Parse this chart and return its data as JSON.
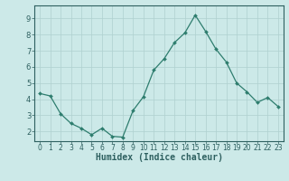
{
  "x": [
    0,
    1,
    2,
    3,
    4,
    5,
    6,
    7,
    8,
    9,
    10,
    11,
    12,
    13,
    14,
    15,
    16,
    17,
    18,
    19,
    20,
    21,
    22,
    23
  ],
  "y": [
    4.35,
    4.2,
    3.1,
    2.5,
    2.2,
    1.8,
    2.2,
    1.7,
    1.65,
    3.3,
    4.15,
    5.8,
    6.5,
    7.5,
    8.1,
    9.2,
    8.2,
    7.1,
    6.3,
    5.0,
    4.45,
    3.8,
    4.1,
    3.55
  ],
  "line_color": "#2e7d6e",
  "marker": "D",
  "markersize": 2.0,
  "linewidth": 0.9,
  "bg_color": "#cce9e8",
  "grid_color": "#afd0cf",
  "xlabel": "Humidex (Indice chaleur)",
  "xlabel_fontsize": 7,
  "ytick_labels": [
    "2",
    "3",
    "4",
    "5",
    "6",
    "7",
    "8",
    "9"
  ],
  "ytick_values": [
    2,
    3,
    4,
    5,
    6,
    7,
    8,
    9
  ],
  "xtick_labels": [
    "0",
    "1",
    "2",
    "3",
    "4",
    "5",
    "6",
    "7",
    "8",
    "9",
    "10",
    "11",
    "12",
    "13",
    "14",
    "15",
    "16",
    "17",
    "18",
    "19",
    "20",
    "21",
    "22",
    "23"
  ],
  "xlim": [
    -0.5,
    23.5
  ],
  "ylim": [
    1.4,
    9.8
  ],
  "tick_color": "#2e6060",
  "tick_fontsize": 5.5,
  "ytick_fontsize": 6.0
}
